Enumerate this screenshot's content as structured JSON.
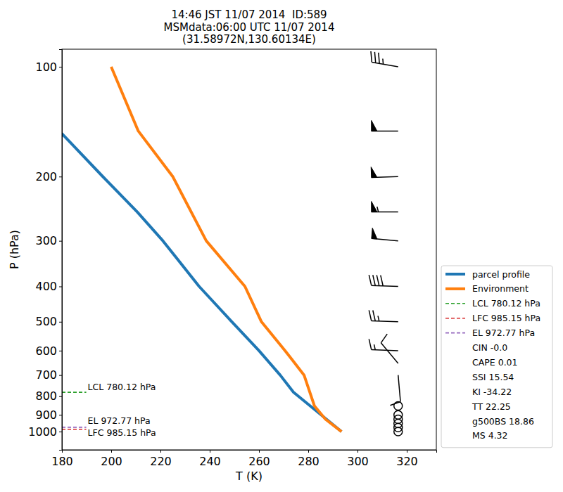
{
  "chart_data": {
    "type": "line",
    "title": [
      "14:46 JST 11/07 2014  ID:589",
      "MSMdata:06:00 UTC 11/07 2014",
      "(31.58972N,130.60134E)"
    ],
    "x_label": "T (K)",
    "y_label": "P (hPa)",
    "xlim": [
      180,
      332
    ],
    "xticks": [
      180,
      200,
      220,
      240,
      260,
      280,
      300,
      320
    ],
    "ylim": [
      1122,
      89.5
    ],
    "yticks": [
      100,
      200,
      300,
      400,
      500,
      600,
      700,
      800,
      900,
      1000
    ],
    "log": "y",
    "legend": "right",
    "series": [
      {
        "name": "parcel profile",
        "color": "#1f77b4",
        "pressure": [
          1000,
          780.12,
          700,
          600,
          500,
          400,
          300,
          250,
          200,
          150
        ],
        "values": [
          293.5,
          274.0,
          268.6,
          260.0,
          249.0,
          235.7,
          221.0,
          210.6,
          196.6,
          179.0
        ]
      },
      {
        "name": "Environment",
        "color": "#ff7f0e",
        "pressure": [
          1000,
          925,
          850,
          700,
          600,
          500,
          400,
          300,
          200,
          150,
          100
        ],
        "values": [
          293.5,
          287.0,
          282.5,
          278.3,
          270.6,
          261.0,
          254.3,
          238.6,
          225.0,
          211.0,
          200.0
        ]
      }
    ],
    "levels": [
      {
        "label": "LCL 780.12 hPa",
        "value": 780.12,
        "color": "#2ca02c",
        "line_style": "dashed"
      },
      {
        "label": "LFC 985.15 hPa",
        "value": 985.15,
        "color": "#d62728",
        "line_style": "dashed"
      },
      {
        "label": "EL 972.77 hPa",
        "value": 972.77,
        "color": "#9467bd",
        "line_style": "dashed"
      }
    ],
    "indices": [
      {
        "label": "CIN -0.0",
        "value": -0.0
      },
      {
        "label": "CAPE 0.01",
        "value": 0.01
      },
      {
        "label": "SSI 15.54",
        "value": 15.54
      },
      {
        "label": "KI -34.22",
        "value": -34.22
      },
      {
        "label": "TT 22.25",
        "value": 22.25
      },
      {
        "label": "g500BS 18.86",
        "value": 18.86
      },
      {
        "label": "MS 4.32",
        "value": 4.32
      }
    ],
    "wind": {
      "pressure": [
        1000,
        975,
        950,
        925,
        900,
        850,
        700,
        650,
        600,
        500,
        400,
        300,
        250,
        200,
        150,
        100
      ],
      "direction": [
        0,
        0,
        0,
        0,
        0,
        0,
        175,
        320,
        272,
        272,
        272,
        275,
        270,
        268,
        270,
        280
      ],
      "speed": [
        0,
        0,
        0,
        0,
        0,
        0,
        10,
        10,
        15,
        25,
        40,
        50,
        55,
        50,
        50,
        35
      ]
    }
  }
}
